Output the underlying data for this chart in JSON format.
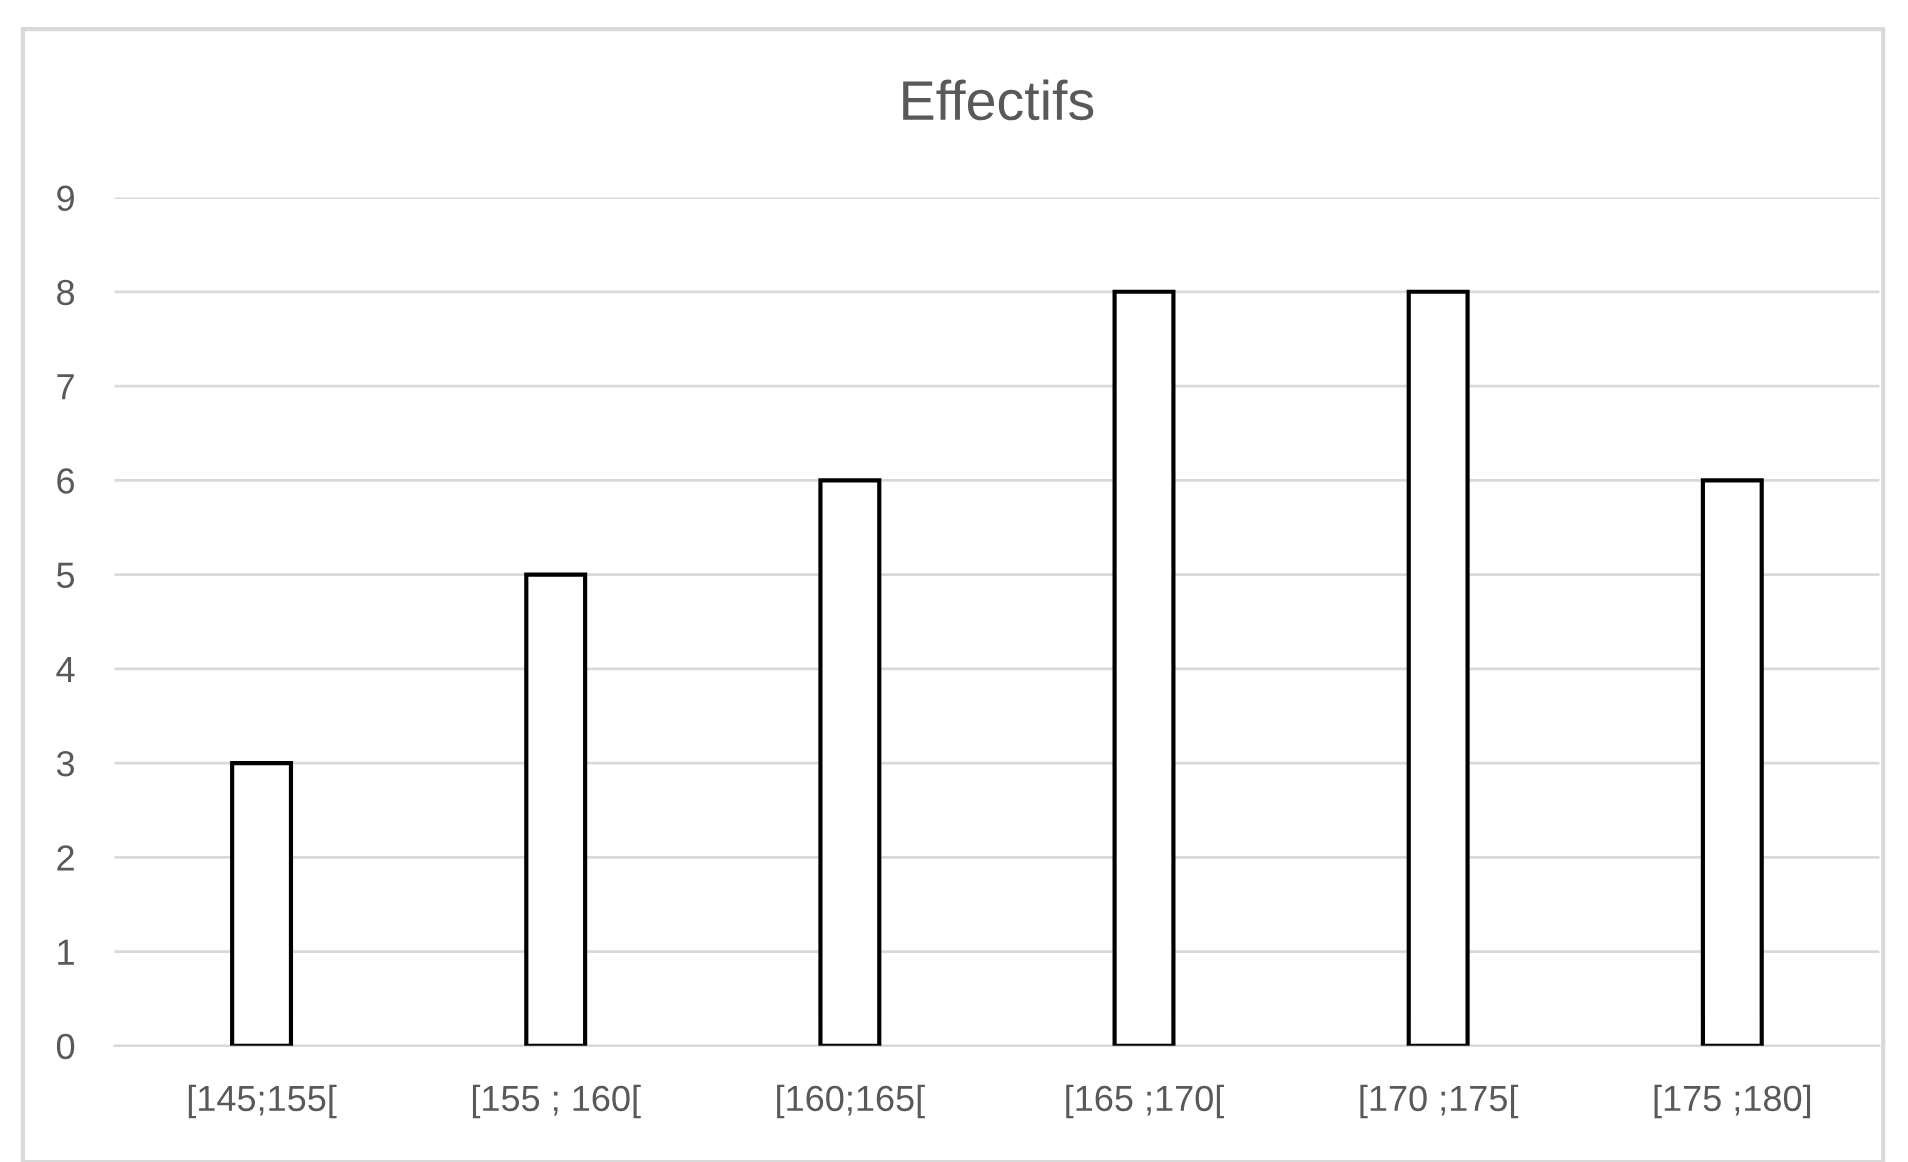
{
  "chart_data": {
    "type": "bar",
    "title": "Effectifs",
    "categories": [
      "[145;155[",
      "[155 ; 160[",
      "[160;165[",
      "[165 ;170[",
      "[170 ;175[",
      "[175 ;180]"
    ],
    "values": [
      3,
      5,
      6,
      8,
      8,
      6
    ],
    "color": "#ffffff",
    "ylim": [
      0,
      9
    ],
    "yticks": [
      0,
      1,
      2,
      3,
      4,
      5,
      6,
      7,
      8,
      9
    ],
    "grid": "y",
    "legend": false
  }
}
